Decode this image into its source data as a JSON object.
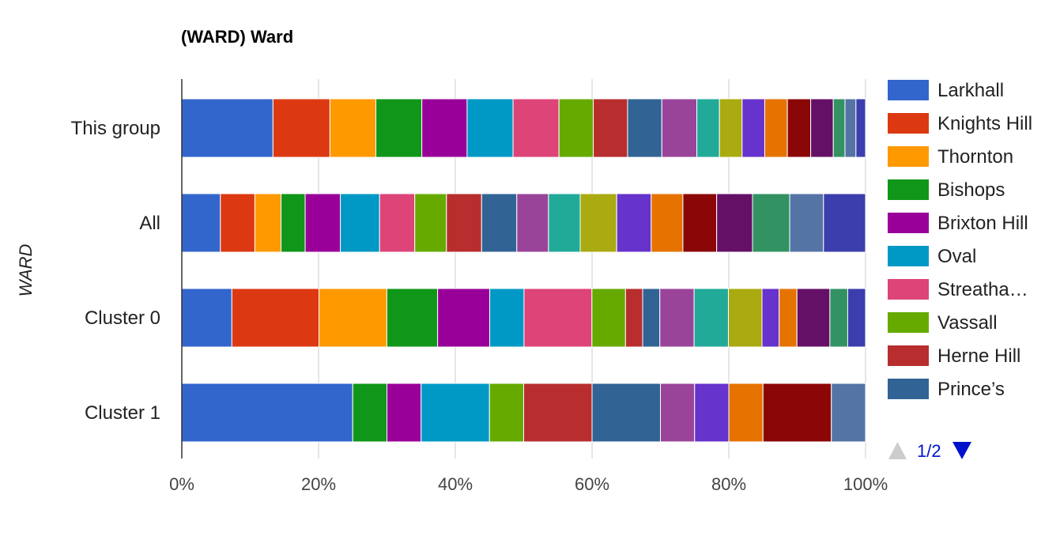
{
  "chart_data": {
    "type": "bar",
    "orientation": "horizontal",
    "stacked": "percent",
    "title": "(WARD) Ward",
    "ylabel": "WARD",
    "xlabel": "",
    "xlim": [
      0,
      100
    ],
    "x_ticks": [
      "0%",
      "20%",
      "40%",
      "60%",
      "80%",
      "100%"
    ],
    "grid": true,
    "legend_position": "right",
    "categories": [
      "This group",
      "All",
      "Cluster 0",
      "Cluster 1"
    ],
    "series": [
      {
        "name": "Larkhall",
        "color": "#3366cc",
        "values": [
          13.3,
          5.6,
          7.3,
          25.0
        ]
      },
      {
        "name": "Knights Hill",
        "color": "#dc3912",
        "values": [
          8.3,
          5.0,
          12.7,
          0
        ]
      },
      {
        "name": "Thornton",
        "color": "#ff9900",
        "values": [
          6.7,
          3.8,
          9.9,
          0
        ]
      },
      {
        "name": "Bishops",
        "color": "#109618",
        "values": [
          6.7,
          3.5,
          7.4,
          5.0
        ]
      },
      {
        "name": "Brixton Hill",
        "color": "#990099",
        "values": [
          6.6,
          5.1,
          7.6,
          5.0
        ]
      },
      {
        "name": "Oval",
        "color": "#0099c6",
        "values": [
          6.7,
          5.7,
          5.0,
          10.0
        ]
      },
      {
        "name": "Streatha…",
        "color": "#dd4477",
        "values": [
          6.7,
          5.1,
          9.9,
          0
        ]
      },
      {
        "name": "Vassall",
        "color": "#66aa00",
        "values": [
          5.0,
          4.6,
          4.9,
          5.0
        ]
      },
      {
        "name": "Herne Hill",
        "color": "#b82e2e",
        "values": [
          5.0,
          5.1,
          2.5,
          10.0
        ]
      },
      {
        "name": "Prince’s",
        "color": "#316395",
        "values": [
          5.0,
          5.1,
          2.5,
          10.0
        ]
      },
      {
        "color": "#994499",
        "values": [
          5.1,
          4.6,
          5.0,
          5.0
        ]
      },
      {
        "color": "#22aa99",
        "values": [
          3.3,
          4.6,
          5.0,
          0
        ]
      },
      {
        "color": "#aaaa11",
        "values": [
          3.3,
          5.3,
          4.9,
          0
        ]
      },
      {
        "color": "#6633cc",
        "values": [
          3.3,
          5.0,
          2.5,
          5.0
        ]
      },
      {
        "color": "#e67300",
        "values": [
          3.3,
          4.6,
          2.6,
          5.0
        ]
      },
      {
        "color": "#8b0707",
        "values": [
          3.4,
          4.9,
          0,
          10.0
        ]
      },
      {
        "color": "#651067",
        "values": [
          3.3,
          5.2,
          4.8,
          0
        ]
      },
      {
        "color": "#329262",
        "values": [
          1.7,
          5.4,
          2.6,
          0
        ]
      },
      {
        "color": "#5574a6",
        "values": [
          1.6,
          4.9,
          0,
          5.0
        ]
      },
      {
        "color": "#3b3eac",
        "values": [
          1.4,
          6.1,
          2.6,
          0
        ]
      }
    ]
  },
  "legend": {
    "page": "1/2"
  }
}
